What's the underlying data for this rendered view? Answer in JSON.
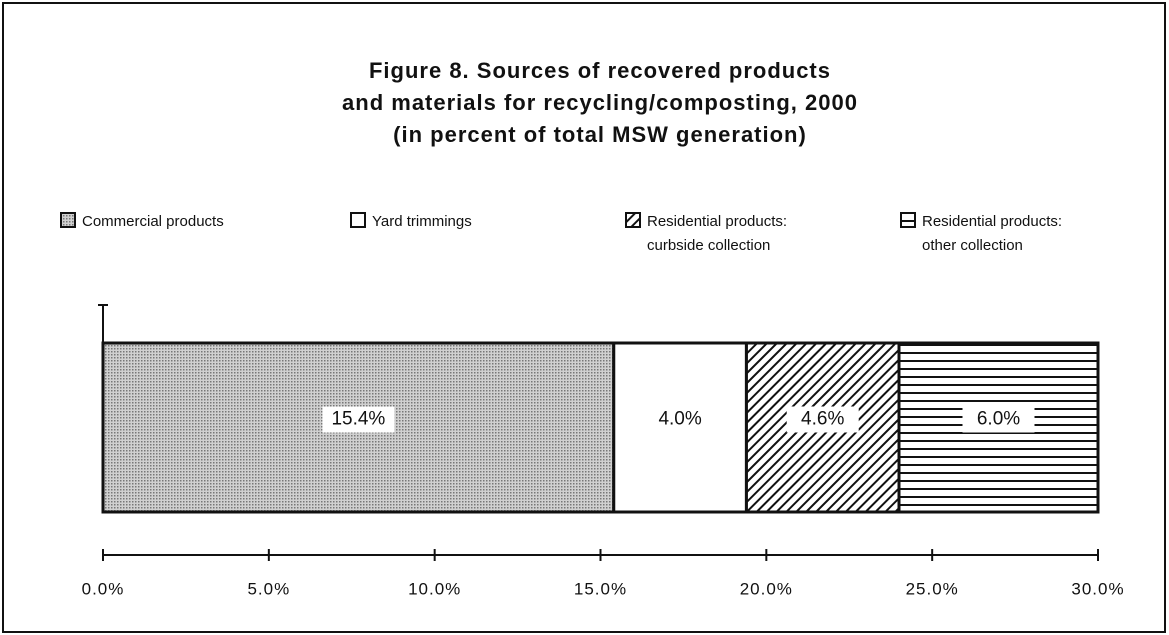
{
  "chart_data": {
    "type": "stacked_hbar",
    "title": [
      "Figure 8. Sources of recovered products",
      "and materials for recycling/composting, 2000"
    ],
    "subtitle": "(in percent of total MSW generation)",
    "series": [
      {
        "name": "Commercial products",
        "color": "#b4b4b4",
        "pattern": "dots",
        "values": [
          15.4
        ],
        "value_labels": [
          "15.4%"
        ]
      },
      {
        "name": "Yard trimmings",
        "color": "#ffffff",
        "pattern": "none",
        "values": [
          4.0
        ],
        "value_labels": [
          "4.0%"
        ]
      },
      {
        "name": "Residential products: curbside collection",
        "color": "#000000",
        "pattern": "diagonal",
        "values": [
          4.6
        ],
        "value_labels": [
          "4.6%"
        ]
      },
      {
        "name": "Residential products: other collection",
        "color": "#000000",
        "pattern": "horizontal",
        "values": [
          6.0
        ],
        "value_labels": [
          "6.0%"
        ]
      }
    ],
    "xlim": [
      0,
      30
    ],
    "xticks": [
      {
        "value": 0,
        "label": "0.0%"
      },
      {
        "value": 5,
        "label": "5.0%"
      },
      {
        "value": 10,
        "label": "10.0%"
      },
      {
        "value": 15,
        "label": "15.0%"
      },
      {
        "value": 20,
        "label": "20.0%"
      },
      {
        "value": 25,
        "label": "25.0%"
      },
      {
        "value": 30,
        "label": "30.0%"
      }
    ]
  }
}
